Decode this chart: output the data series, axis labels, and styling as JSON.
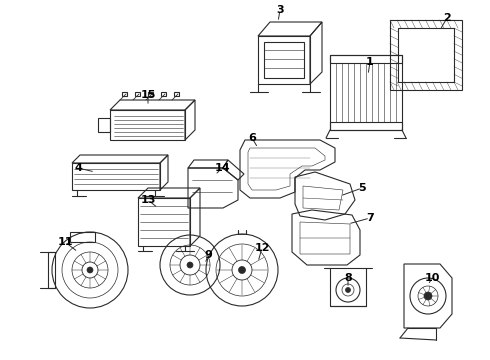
{
  "bg_color": "#ffffff",
  "line_color": "#2a2a2a",
  "lw": 0.8,
  "figsize": [
    4.9,
    3.6
  ],
  "dpi": 100,
  "callouts": [
    [
      1,
      370,
      62,
      368,
      75
    ],
    [
      2,
      447,
      18,
      440,
      30
    ],
    [
      3,
      280,
      10,
      278,
      22
    ],
    [
      4,
      78,
      168,
      95,
      172
    ],
    [
      5,
      362,
      188,
      340,
      196
    ],
    [
      6,
      252,
      138,
      258,
      148
    ],
    [
      7,
      370,
      218,
      348,
      224
    ],
    [
      8,
      348,
      278,
      348,
      288
    ],
    [
      9,
      208,
      255,
      205,
      264
    ],
    [
      10,
      432,
      278,
      428,
      285
    ],
    [
      11,
      65,
      242,
      78,
      252
    ],
    [
      12,
      262,
      248,
      258,
      262
    ],
    [
      13,
      148,
      200,
      158,
      208
    ],
    [
      14,
      222,
      168,
      215,
      175
    ],
    [
      15,
      148,
      95,
      148,
      106
    ]
  ]
}
